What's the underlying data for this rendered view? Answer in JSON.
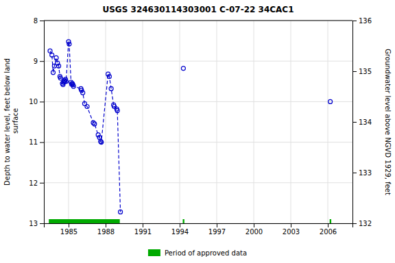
{
  "chart_data": {
    "type": "line",
    "title": "USGS 324630114303001 C-07-22 34CAC1",
    "y_label": "Depth to water level, feet below land\n surface",
    "y2_label": "Groundwater level above NGVD 1929, feet",
    "xlim": [
      1983.0,
      2008.0
    ],
    "xticks": [
      1985,
      1988,
      1991,
      1994,
      1997,
      2000,
      2003,
      2006
    ],
    "ylim": [
      13,
      8
    ],
    "yticks": [
      8,
      9,
      10,
      11,
      12,
      13
    ],
    "y2lim": [
      132,
      136
    ],
    "y2ticks": [
      132,
      133,
      134,
      135,
      136
    ],
    "grid": true,
    "series": [
      {
        "type": "line",
        "color": "#0000cc",
        "marker": "circle",
        "line_style": "dashed",
        "x": [
          1983.5,
          1983.65,
          1983.75,
          1983.85,
          1984.0,
          1984.1,
          1984.2,
          1984.3,
          1984.35,
          1984.5,
          1984.55,
          1984.6,
          1984.65,
          1984.7,
          1984.75,
          1984.8,
          1985.0,
          1985.05,
          1985.2,
          1985.25,
          1985.3,
          1985.35,
          1985.4,
          1986.0,
          1986.05,
          1986.15,
          1986.3,
          1986.5,
          1987.0,
          1987.1,
          1987.4,
          1987.5,
          1987.6,
          1987.65,
          1988.2,
          1988.3,
          1988.45,
          1988.65,
          1988.7,
          1988.9,
          1988.95,
          1989.2,
          null,
          1994.3,
          null,
          2006.2
        ],
        "values": [
          8.75,
          8.85,
          9.28,
          9.12,
          8.92,
          9.05,
          9.12,
          9.38,
          9.42,
          9.55,
          9.58,
          9.52,
          9.48,
          9.5,
          9.45,
          9.5,
          8.52,
          8.58,
          9.52,
          9.57,
          9.55,
          9.58,
          9.62,
          9.68,
          9.72,
          9.78,
          10.05,
          10.12,
          10.52,
          10.55,
          10.82,
          10.88,
          10.98,
          11.0,
          9.32,
          9.38,
          9.68,
          10.08,
          10.12,
          10.18,
          10.22,
          12.72,
          null,
          9.18,
          null,
          10.0
        ]
      },
      {
        "type": "range",
        "name": "Period of approved data",
        "color": "#00aa00",
        "starts": [
          1983.4,
          1994.25,
          2006.15
        ],
        "ends": [
          1989.15,
          1994.38,
          2006.28
        ]
      }
    ]
  }
}
